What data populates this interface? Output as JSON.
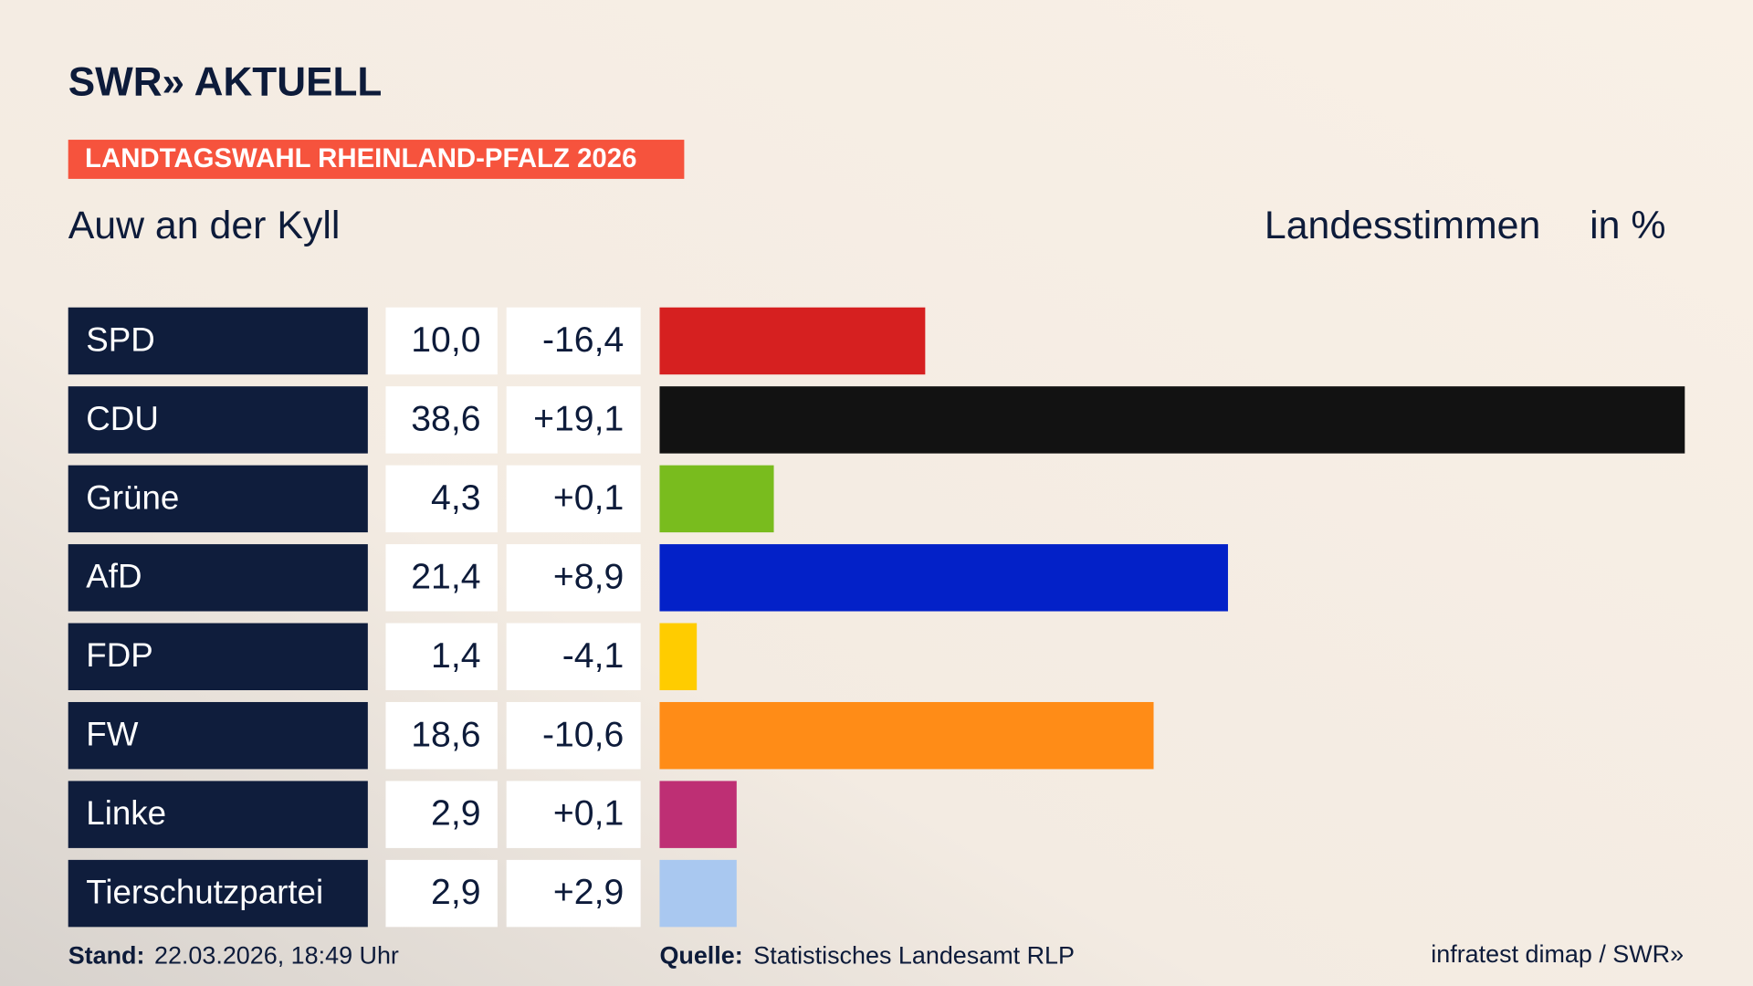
{
  "header": {
    "logo": "SWR» AKTUELL",
    "tag": "LANDTAGSWAHL RHEINLAND-PFALZ 2026",
    "location": "Auw an der Kyll",
    "vote_type": "Landesstimmen",
    "unit": "in %"
  },
  "chart_data": {
    "type": "bar",
    "categories": [
      "SPD",
      "CDU",
      "Grüne",
      "AfD",
      "FDP",
      "FW",
      "Linke",
      "Tierschutzpartei"
    ],
    "values": [
      10.0,
      38.6,
      4.3,
      21.4,
      1.4,
      18.6,
      2.9,
      2.9
    ],
    "value_labels": [
      "10,0",
      "38,6",
      "4,3",
      "21,4",
      "1,4",
      "18,6",
      "2,9",
      "2,9"
    ],
    "changes": [
      "-16,4",
      "+19,1",
      "+0,1",
      "+8,9",
      "-4,1",
      "-10,6",
      "+0,1",
      "+2,9"
    ],
    "colors": [
      "#d62020",
      "#121212",
      "#79bc1e",
      "#0321c8",
      "#ffcc00",
      "#ff8c17",
      "#be2f74",
      "#a9c8f0"
    ]
  },
  "footer": {
    "stand_label": "Stand:",
    "stand": "22.03.2026, 18:49 Uhr",
    "source_label": "Quelle:",
    "source": "Statistisches Landesamt RLP",
    "credit": "infratest dimap / SWR»"
  }
}
